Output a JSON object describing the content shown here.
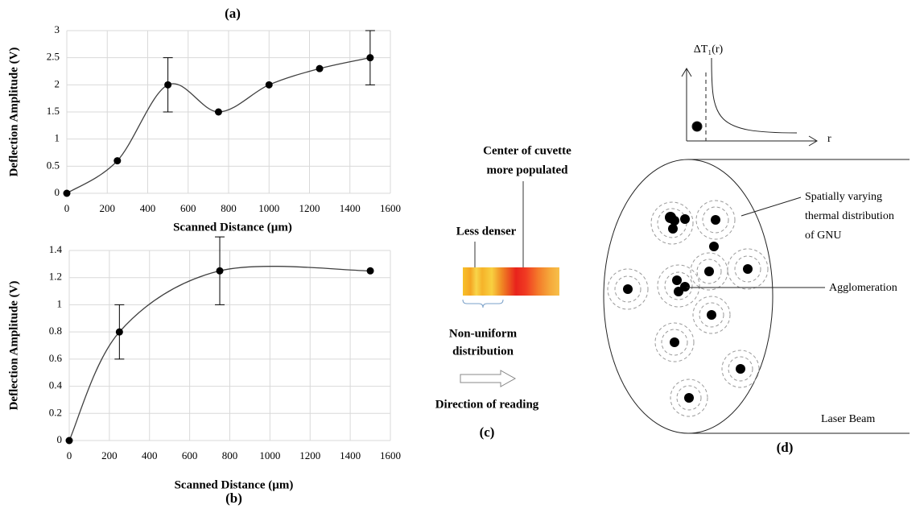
{
  "chart_data": [
    {
      "type": "line",
      "title": "(a)",
      "x_label": "Scanned Distance (µm)",
      "y_label": "Deflection Amplitude (V)",
      "x": [
        0,
        250,
        500,
        750,
        1000,
        1250,
        1500
      ],
      "values": [
        0,
        0.6,
        2,
        1.5,
        2,
        2.3,
        2.5
      ],
      "errors": [
        null,
        null,
        0.5,
        null,
        null,
        null,
        0.5
      ],
      "color": "#404040",
      "xlim": [
        0,
        1600
      ],
      "xticks": [
        0,
        200,
        400,
        600,
        800,
        1000,
        1200,
        1400,
        1600
      ],
      "ylim": [
        0,
        3
      ],
      "yticks": [
        0,
        0.5,
        1,
        1.5,
        2,
        2.5,
        3
      ],
      "grid": true
    },
    {
      "type": "line",
      "title": "(b)",
      "x_label": "Scanned Distance (µm)",
      "y_label": "Deflection Amplitude (V)",
      "x": [
        0,
        250,
        750,
        1500
      ],
      "values": [
        0,
        0.8,
        1.25,
        1.25
      ],
      "errors": [
        null,
        0.2,
        0.25,
        null
      ],
      "color": "#404040",
      "xlim": [
        0,
        1600
      ],
      "xticks": [
        0,
        200,
        400,
        600,
        800,
        1000,
        1200,
        1400,
        1600
      ],
      "ylim": [
        0,
        1.4
      ],
      "yticks": [
        0,
        0.2,
        0.4,
        0.6,
        0.8,
        1,
        1.2,
        1.4
      ],
      "grid": true
    }
  ],
  "diagram_c": {
    "label": "(c)",
    "top_note": [
      "Center of cuvette",
      "more populated"
    ],
    "left_note": "Less denser",
    "bottom_note": [
      "Non-uniform",
      "distribution"
    ],
    "direction": "Direction of reading"
  },
  "diagram_d": {
    "label": "(d)",
    "axis_y": "ΔT₁(r)",
    "axis_x": "r",
    "note": [
      "Spatially varying",
      "thermal distribution",
      "of GNU"
    ],
    "agglomeration": "Agglomeration",
    "beam": "Laser Beam"
  }
}
